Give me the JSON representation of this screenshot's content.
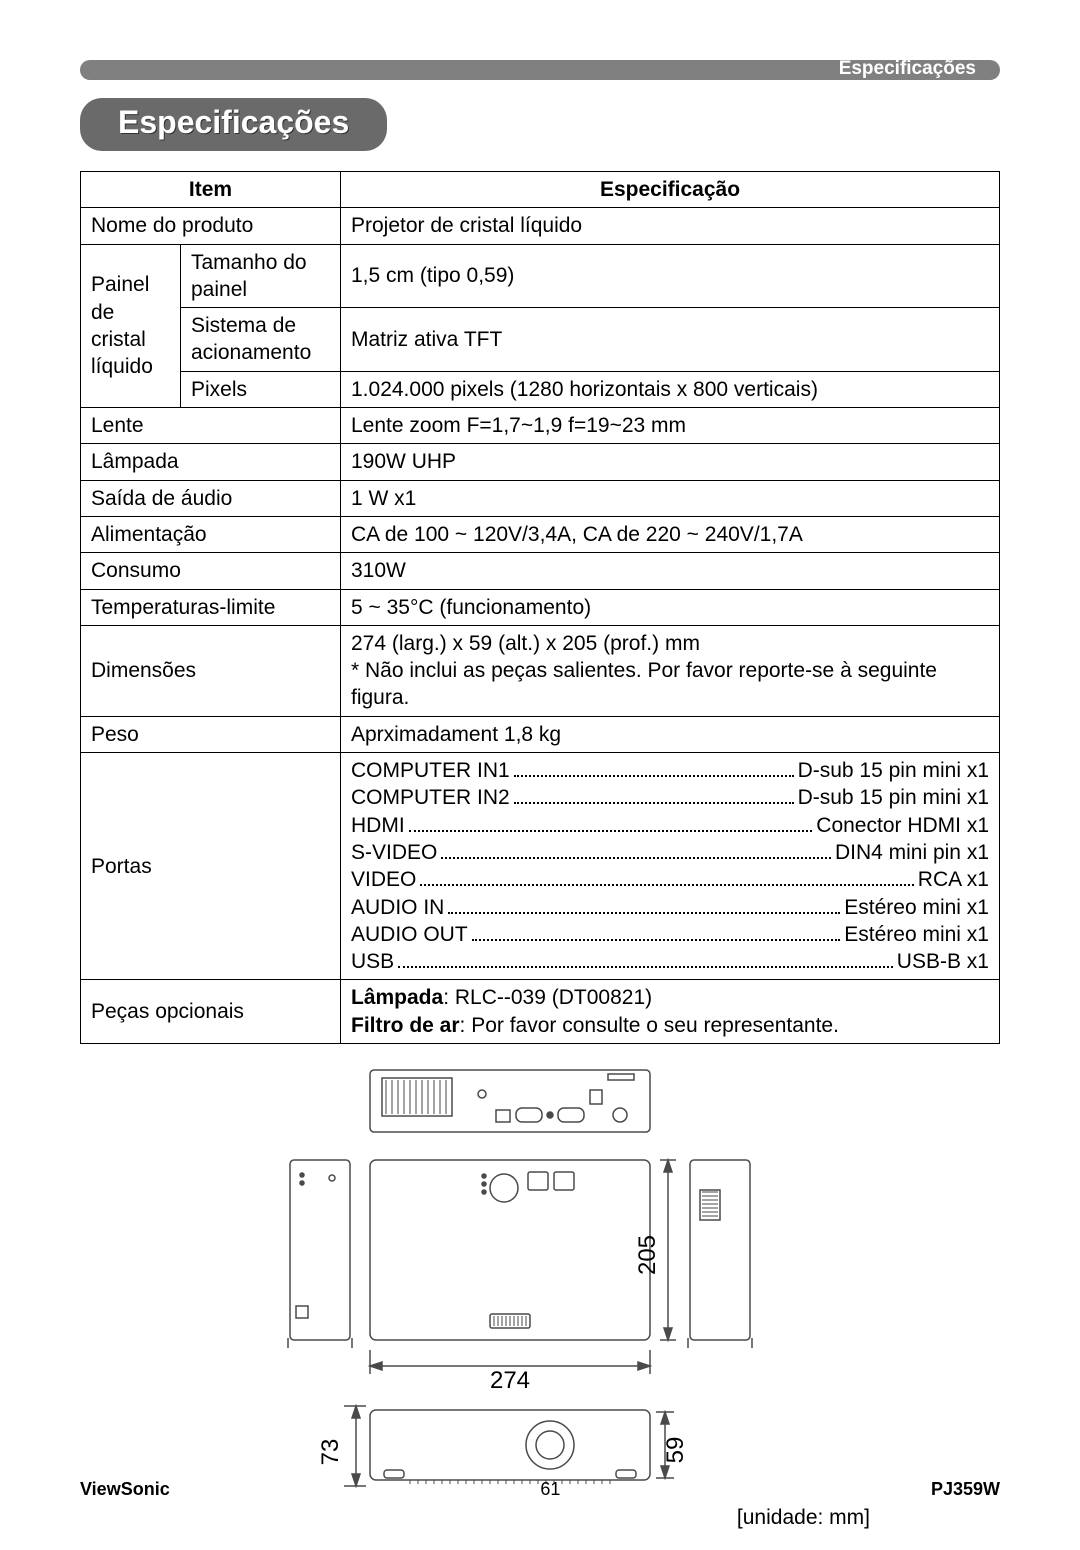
{
  "header": {
    "topbar_label": "Especificações",
    "section_title": "Especificações"
  },
  "table": {
    "head_item": "Item",
    "head_spec": "Especificação",
    "rows": {
      "product_name_label": "Nome do produto",
      "product_name_value": "Projetor de cristal líquido",
      "lcd_panel_group": "Painel de cristal líquido",
      "panel_size_label": "Tamanho do painel",
      "panel_size_value": "1,5 cm (tipo 0,59)",
      "drive_sys_label": "Sistema de acionamento",
      "drive_sys_value": "Matriz ativa TFT",
      "pixels_label": "Pixels",
      "pixels_value": "1.024.000 pixels (1280 horizontais x 800 verticais)",
      "lens_label": "Lente",
      "lens_value": "Lente zoom F=1,7~1,9   f=19~23 mm",
      "lamp_label": "Lâmpada",
      "lamp_value": "190W UHP",
      "audio_out_label": "Saída de áudio",
      "audio_out_value": "1 W x1",
      "power_label": "Alimentação",
      "power_value": "CA de 100 ~ 120V/3,4A, CA de 220 ~ 240V/1,7A",
      "consumption_label": "Consumo",
      "consumption_value": "310W",
      "temp_label": "Temperaturas-limite",
      "temp_value": "5 ~ 35°C (funcionamento)",
      "dim_label": "Dimensões",
      "dim_value": "274 (larg.) x 59 (alt.) x 205 (prof.) mm\n* Não inclui as peças salientes. Por favor reporte-se à seguinte figura.",
      "weight_label": "Peso",
      "weight_value": "Aprximadament 1,8 kg",
      "ports_label": "Portas",
      "ports": [
        {
          "left": "COMPUTER IN1",
          "right": "D-sub 15 pin mini x1"
        },
        {
          "left": "COMPUTER IN2",
          "right": "D-sub 15 pin mini x1"
        },
        {
          "left": "HDMI",
          "right": "Conector HDMI x1"
        },
        {
          "left": "S-VIDEO",
          "right": "DIN4 mini pin x1"
        },
        {
          "left": "VIDEO",
          "right": "RCA x1"
        },
        {
          "left": "AUDIO IN",
          "right": "Estéreo mini x1"
        },
        {
          "left": "AUDIO OUT",
          "right": "Estéreo mini x1"
        },
        {
          "left": "USB",
          "right": "USB-B x1"
        }
      ],
      "optional_label": "Peças opcionais",
      "optional_lamp_label": "Lâmpada",
      "optional_lamp_value": ": RLC--039 (DT00821)",
      "optional_filter_label": "Filtro de ar",
      "optional_filter_value": ": Por favor consulte o seu representante."
    }
  },
  "diagram": {
    "width_label": "274",
    "depth_label": "205",
    "height1_label": "73",
    "height2_label": "59",
    "unit_label": "[unidade: mm]",
    "stroke_color": "#4a4a4a",
    "fill_color": "#ffffff"
  },
  "footer": {
    "brand": "ViewSonic",
    "page": "61",
    "model": "PJ359W"
  }
}
